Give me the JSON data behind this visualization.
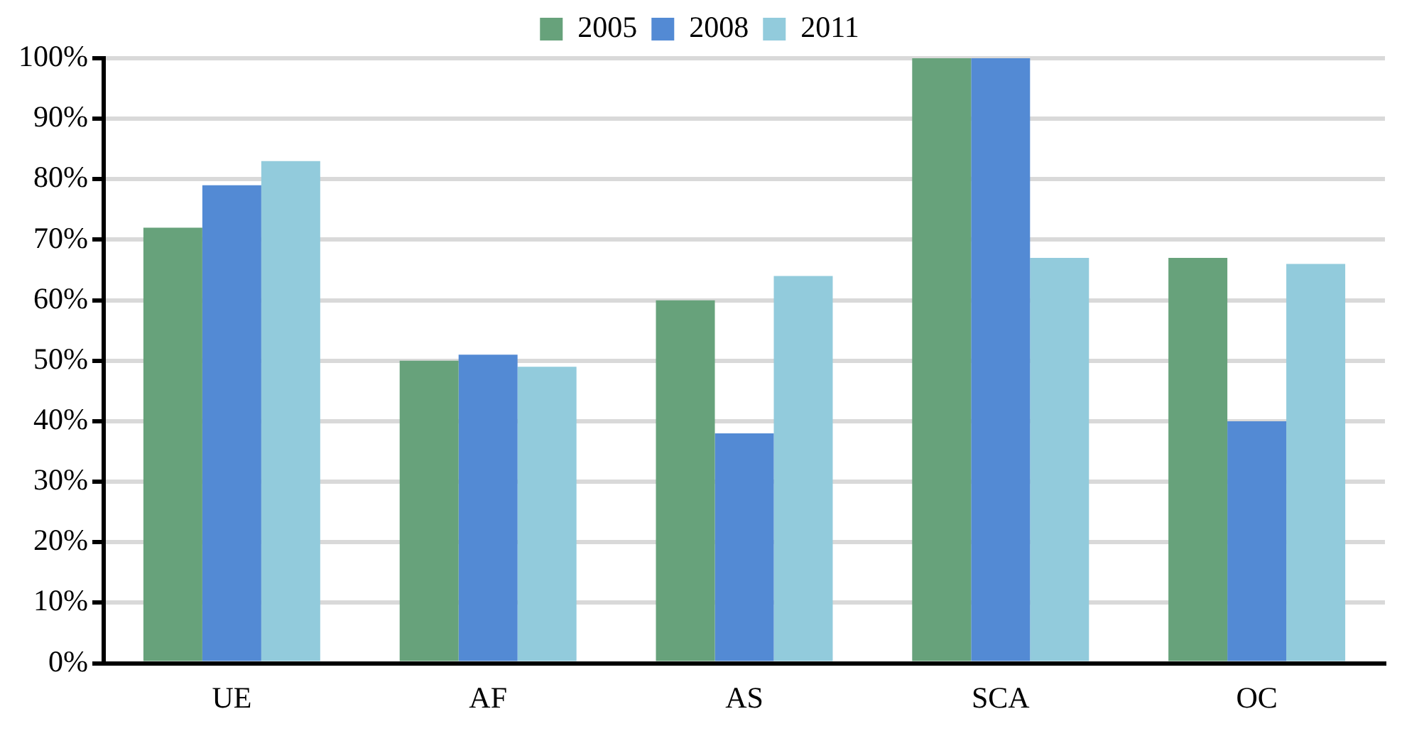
{
  "chart_data": {
    "type": "bar",
    "categories": [
      "UE",
      "AF",
      "AS",
      "SCA",
      "OC"
    ],
    "series": [
      {
        "name": "2005",
        "color": "#67a27b",
        "values": [
          72,
          50,
          60,
          100,
          67
        ]
      },
      {
        "name": "2008",
        "color": "#538ad4",
        "values": [
          79,
          51,
          38,
          100,
          40
        ]
      },
      {
        "name": "2011",
        "color": "#92cbdc",
        "values": [
          83,
          49,
          64,
          67,
          66
        ]
      }
    ],
    "ylim": [
      0,
      100
    ],
    "yticks": [
      {
        "value": 0,
        "label": "0%"
      },
      {
        "value": 10,
        "label": "10%"
      },
      {
        "value": 20,
        "label": "20%"
      },
      {
        "value": 30,
        "label": "30%"
      },
      {
        "value": 40,
        "label": "40%"
      },
      {
        "value": 50,
        "label": "50%"
      },
      {
        "value": 60,
        "label": "60%"
      },
      {
        "value": 70,
        "label": "70%"
      },
      {
        "value": 80,
        "label": "80%"
      },
      {
        "value": 90,
        "label": "90%"
      },
      {
        "value": 100,
        "label": "100%"
      }
    ],
    "grid": "y",
    "legend": "top"
  }
}
